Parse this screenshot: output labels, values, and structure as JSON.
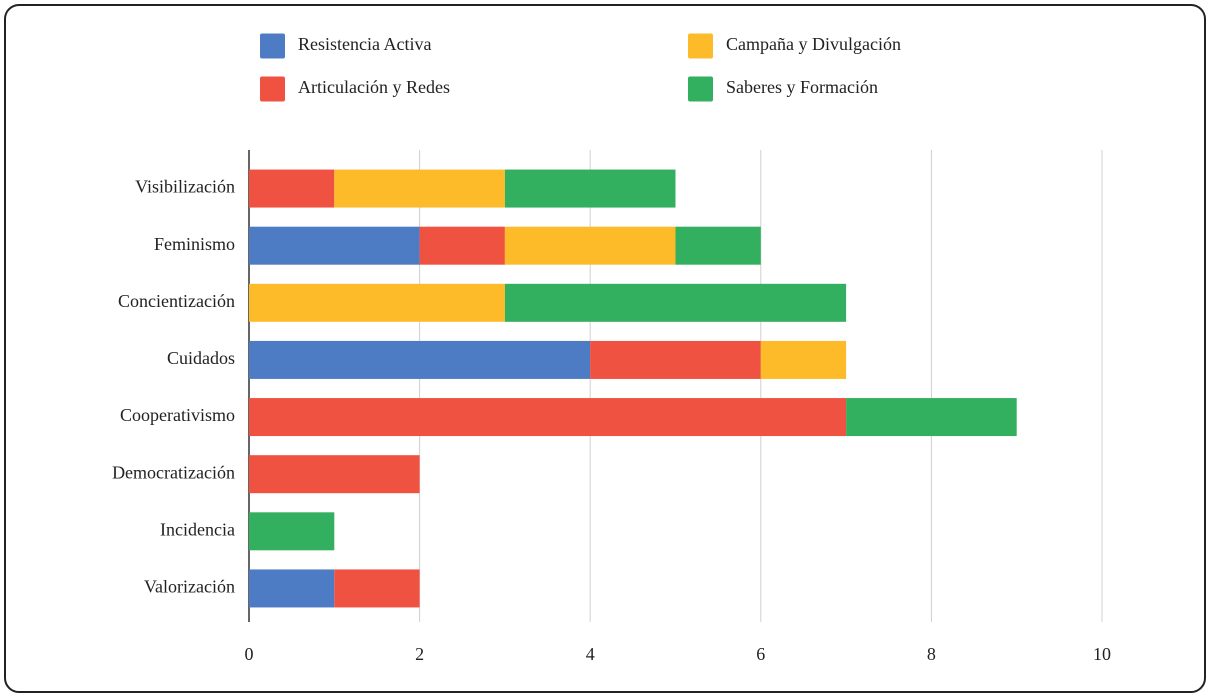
{
  "chart_data": {
    "type": "stacked-barh",
    "categories": [
      "Visibilización",
      "Feminismo",
      "Concientización",
      "Cuidados",
      "Cooperativismo",
      "Democratización",
      "Incidencia",
      "Valorización"
    ],
    "series": [
      {
        "name": "Resistencia Activa",
        "color": "#4d7cc5",
        "values": [
          0,
          2,
          0,
          4,
          0,
          0,
          0,
          1
        ]
      },
      {
        "name": "Articulación y Redes",
        "color": "#ef5241",
        "values": [
          1,
          1,
          0,
          2,
          7,
          2,
          0,
          1
        ]
      },
      {
        "name": "Campaña y Divulgación",
        "color": "#fdbb2a",
        "values": [
          2,
          2,
          3,
          1,
          0,
          0,
          0,
          0
        ]
      },
      {
        "name": "Saberes y Formación",
        "color": "#33b05f",
        "values": [
          2,
          1,
          4,
          0,
          2,
          0,
          1,
          0
        ]
      }
    ],
    "xlim": [
      0,
      11
    ],
    "xticks": [
      0,
      2,
      4,
      6,
      8,
      10
    ],
    "grid": true
  }
}
